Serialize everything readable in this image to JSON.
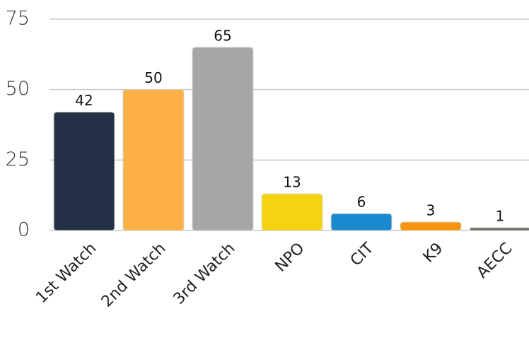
{
  "chart_data": {
    "type": "bar",
    "categories": [
      "1st Watch",
      "2nd Watch",
      "3rd Watch",
      "NPO",
      "CIT",
      "K9",
      "AECC"
    ],
    "values": [
      42,
      50,
      65,
      13,
      6,
      3,
      1
    ],
    "colors": [
      "#243048",
      "#fdb045",
      "#a6a6a6",
      "#f4d411",
      "#1a8ad0",
      "#f7930e",
      "#6a6a6a"
    ],
    "ylim": [
      0,
      75
    ],
    "yticks": [
      0,
      25,
      50,
      75
    ],
    "grid": true
  }
}
